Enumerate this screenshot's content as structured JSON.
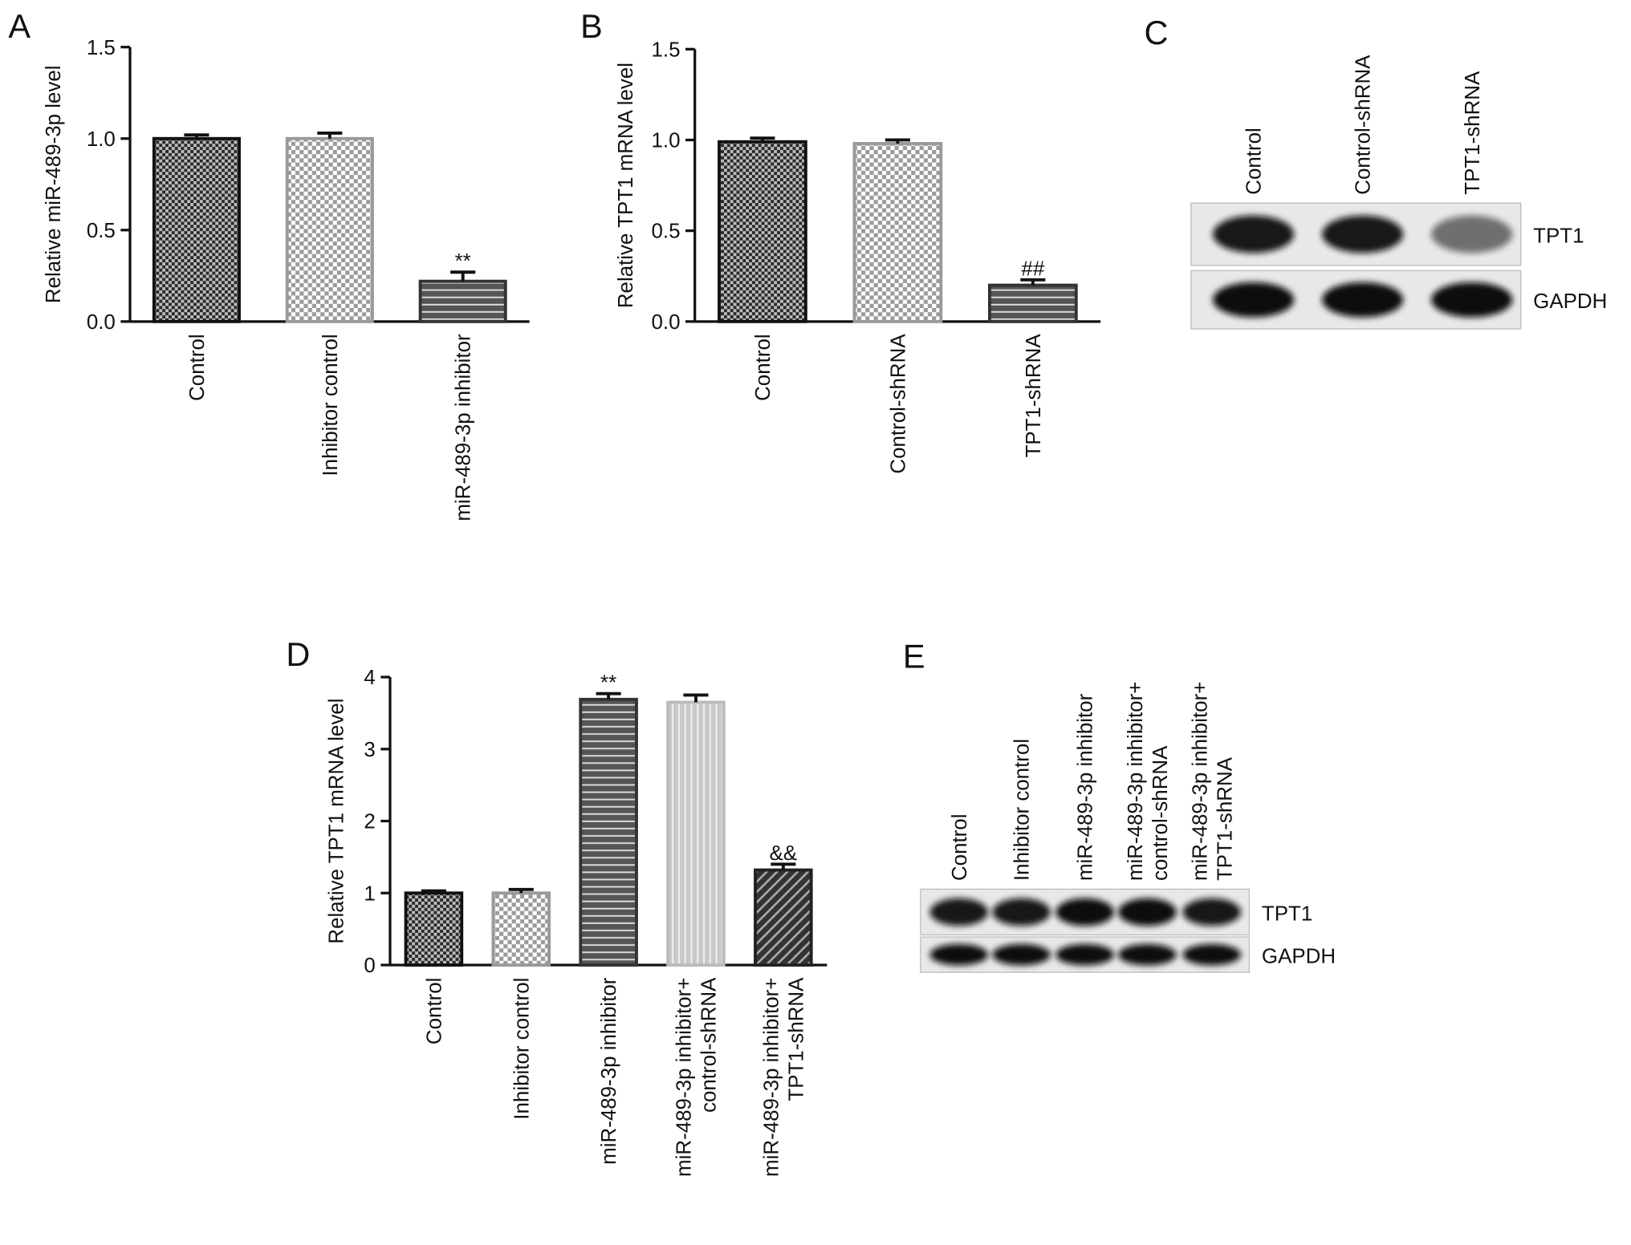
{
  "chart_data": [
    {
      "type": "bar",
      "panel": "A",
      "y_label": "Relative miR-489-3p level",
      "categories": [
        [
          "Control"
        ],
        [
          "Inhibitor control"
        ],
        [
          "miR-489-3p inhibitor"
        ]
      ],
      "values": [
        1.0,
        1.0,
        0.22
      ],
      "errors": [
        0.02,
        0.03,
        0.05
      ],
      "annotations": [
        null,
        null,
        "**"
      ],
      "patterns": [
        "checker-dark",
        "checker-light",
        "hstripe-dark"
      ],
      "ylim": [
        0,
        1.5
      ],
      "yticks": [
        {
          "value": 0,
          "label": "0.0"
        },
        0.5,
        {
          "value": 1,
          "label": "1.0"
        },
        1.5
      ]
    },
    {
      "type": "bar",
      "panel": "B",
      "y_label": "Relative TPT1 mRNA level",
      "categories": [
        [
          "Control"
        ],
        [
          "Control-shRNA"
        ],
        [
          "TPT1-shRNA"
        ]
      ],
      "values": [
        0.99,
        0.98,
        0.2
      ],
      "errors": [
        0.02,
        0.02,
        0.03
      ],
      "annotations": [
        null,
        null,
        "##"
      ],
      "patterns": [
        "checker-dark",
        "checker-light",
        "hstripe-dark"
      ],
      "ylim": [
        0,
        1.5
      ],
      "yticks": [
        {
          "value": 0,
          "label": "0.0"
        },
        0.5,
        {
          "value": 1,
          "label": "1.0"
        },
        1.5
      ]
    },
    {
      "type": "bar",
      "panel": "D",
      "y_label": "Relative TPT1 mRNA level",
      "categories": [
        [
          "Control"
        ],
        [
          "Inhibitor control"
        ],
        [
          "miR-489-3p inhibitor"
        ],
        [
          "miR-489-3p inhibitor+",
          "control-shRNA"
        ],
        [
          "miR-489-3p inhibitor+",
          "TPT1-shRNA"
        ]
      ],
      "values": [
        1.0,
        1.0,
        3.69,
        3.65,
        1.32
      ],
      "errors": [
        0.03,
        0.05,
        0.08,
        0.1,
        0.08
      ],
      "annotations": [
        null,
        null,
        "**",
        null,
        "&&"
      ],
      "patterns": [
        "checker-dark",
        "checker-light",
        "hstripe-dark",
        "vstripe-light",
        "diag-dark"
      ],
      "ylim": [
        0,
        4
      ],
      "yticks": [
        0,
        1,
        2,
        3,
        4
      ]
    }
  ],
  "blots": [
    {
      "panel": "C",
      "lanes": [
        [
          "Control"
        ],
        [
          "Control-shRNA"
        ],
        [
          "TPT1-shRNA"
        ]
      ],
      "bands": [
        "TPT1",
        "GAPDH"
      ]
    },
    {
      "panel": "E",
      "lanes": [
        [
          "Control"
        ],
        [
          "Inhibitor control"
        ],
        [
          "miR-489-3p inhibitor"
        ],
        [
          "miR-489-3p inhibitor+",
          "control-shRNA"
        ],
        [
          "miR-489-3p inhibitor+",
          "TPT1-shRNA"
        ]
      ],
      "bands": [
        "TPT1",
        "GAPDH"
      ]
    }
  ]
}
